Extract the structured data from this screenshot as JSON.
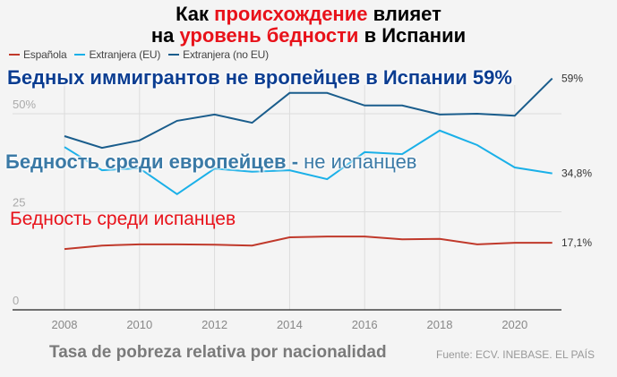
{
  "title": {
    "line1_part1": "Как ",
    "line1_highlight": "происхождение",
    "line1_part2": " влияет",
    "line2_part1": "на ",
    "line2_highlight": "уровень бедности",
    "line2_part2": " в Испании",
    "highlight_color": "#e8121a"
  },
  "legend": [
    {
      "label": "Española",
      "color": "#c0392b"
    },
    {
      "label": "Extranjera (EU)",
      "color": "#1ab0e8"
    },
    {
      "label": "Extranjera (no EU)",
      "color": "#1a5d8c"
    }
  ],
  "annotations": {
    "noeu": "Бедных иммигрантов не вропейцев в Испании 59%",
    "eu_bold": "Бедность среди европейцев -",
    "eu_regular": " не испанцев",
    "es": "Бедность среди испанцев"
  },
  "footer": {
    "title": "Tasa de pobreza relativa por nacionalidad",
    "source": "Fuente: ECV. INEBASE. EL PAÍS"
  },
  "chart_data": {
    "type": "line",
    "title": "Как происхождение влияет на уровень бедности в Испании",
    "subtitle": "Tasa de pobreza relativa por nacionalidad",
    "xlabel": "",
    "ylabel": "",
    "x": [
      2008,
      2009,
      2010,
      2011,
      2012,
      2013,
      2014,
      2015,
      2016,
      2017,
      2018,
      2019,
      2020,
      2021
    ],
    "x_ticks": [
      "2008",
      "2010",
      "2012",
      "2014",
      "2016",
      "2018",
      "2020"
    ],
    "y_ticks": [
      "0",
      "25",
      "50%"
    ],
    "ylim": [
      0,
      55
    ],
    "grid": true,
    "legend_position": "top-left",
    "series": [
      {
        "name": "Española",
        "color": "#c0392b",
        "values": [
          15.5,
          16.4,
          16.7,
          16.7,
          16.6,
          16.4,
          18.5,
          18.7,
          18.7,
          18.0,
          18.1,
          16.7,
          17.1,
          17.1
        ],
        "end_label": "17,1%"
      },
      {
        "name": "Extranjera (EU)",
        "color": "#1ab0e8",
        "values": [
          41.5,
          35.6,
          36.1,
          29.5,
          36.0,
          35.2,
          35.6,
          33.3,
          40.2,
          39.7,
          45.7,
          42.0,
          36.3,
          34.8
        ],
        "end_label": "34,8%"
      },
      {
        "name": "Extranjera (no EU)",
        "color": "#1a5d8c",
        "values": [
          44.3,
          41.3,
          43.2,
          48.2,
          49.8,
          47.7,
          55.3,
          55.3,
          52.1,
          52.1,
          49.8,
          50.0,
          49.5,
          59.0
        ],
        "end_label": "59%"
      }
    ],
    "annotations": [
      "Бедных иммигрантов не вропейцев в Испании 59%",
      "Бедность среди европейцев - не испанцев",
      "Бедность среди испанцев"
    ],
    "source": "Fuente: ECV. INEBASE. EL PAÍS"
  }
}
